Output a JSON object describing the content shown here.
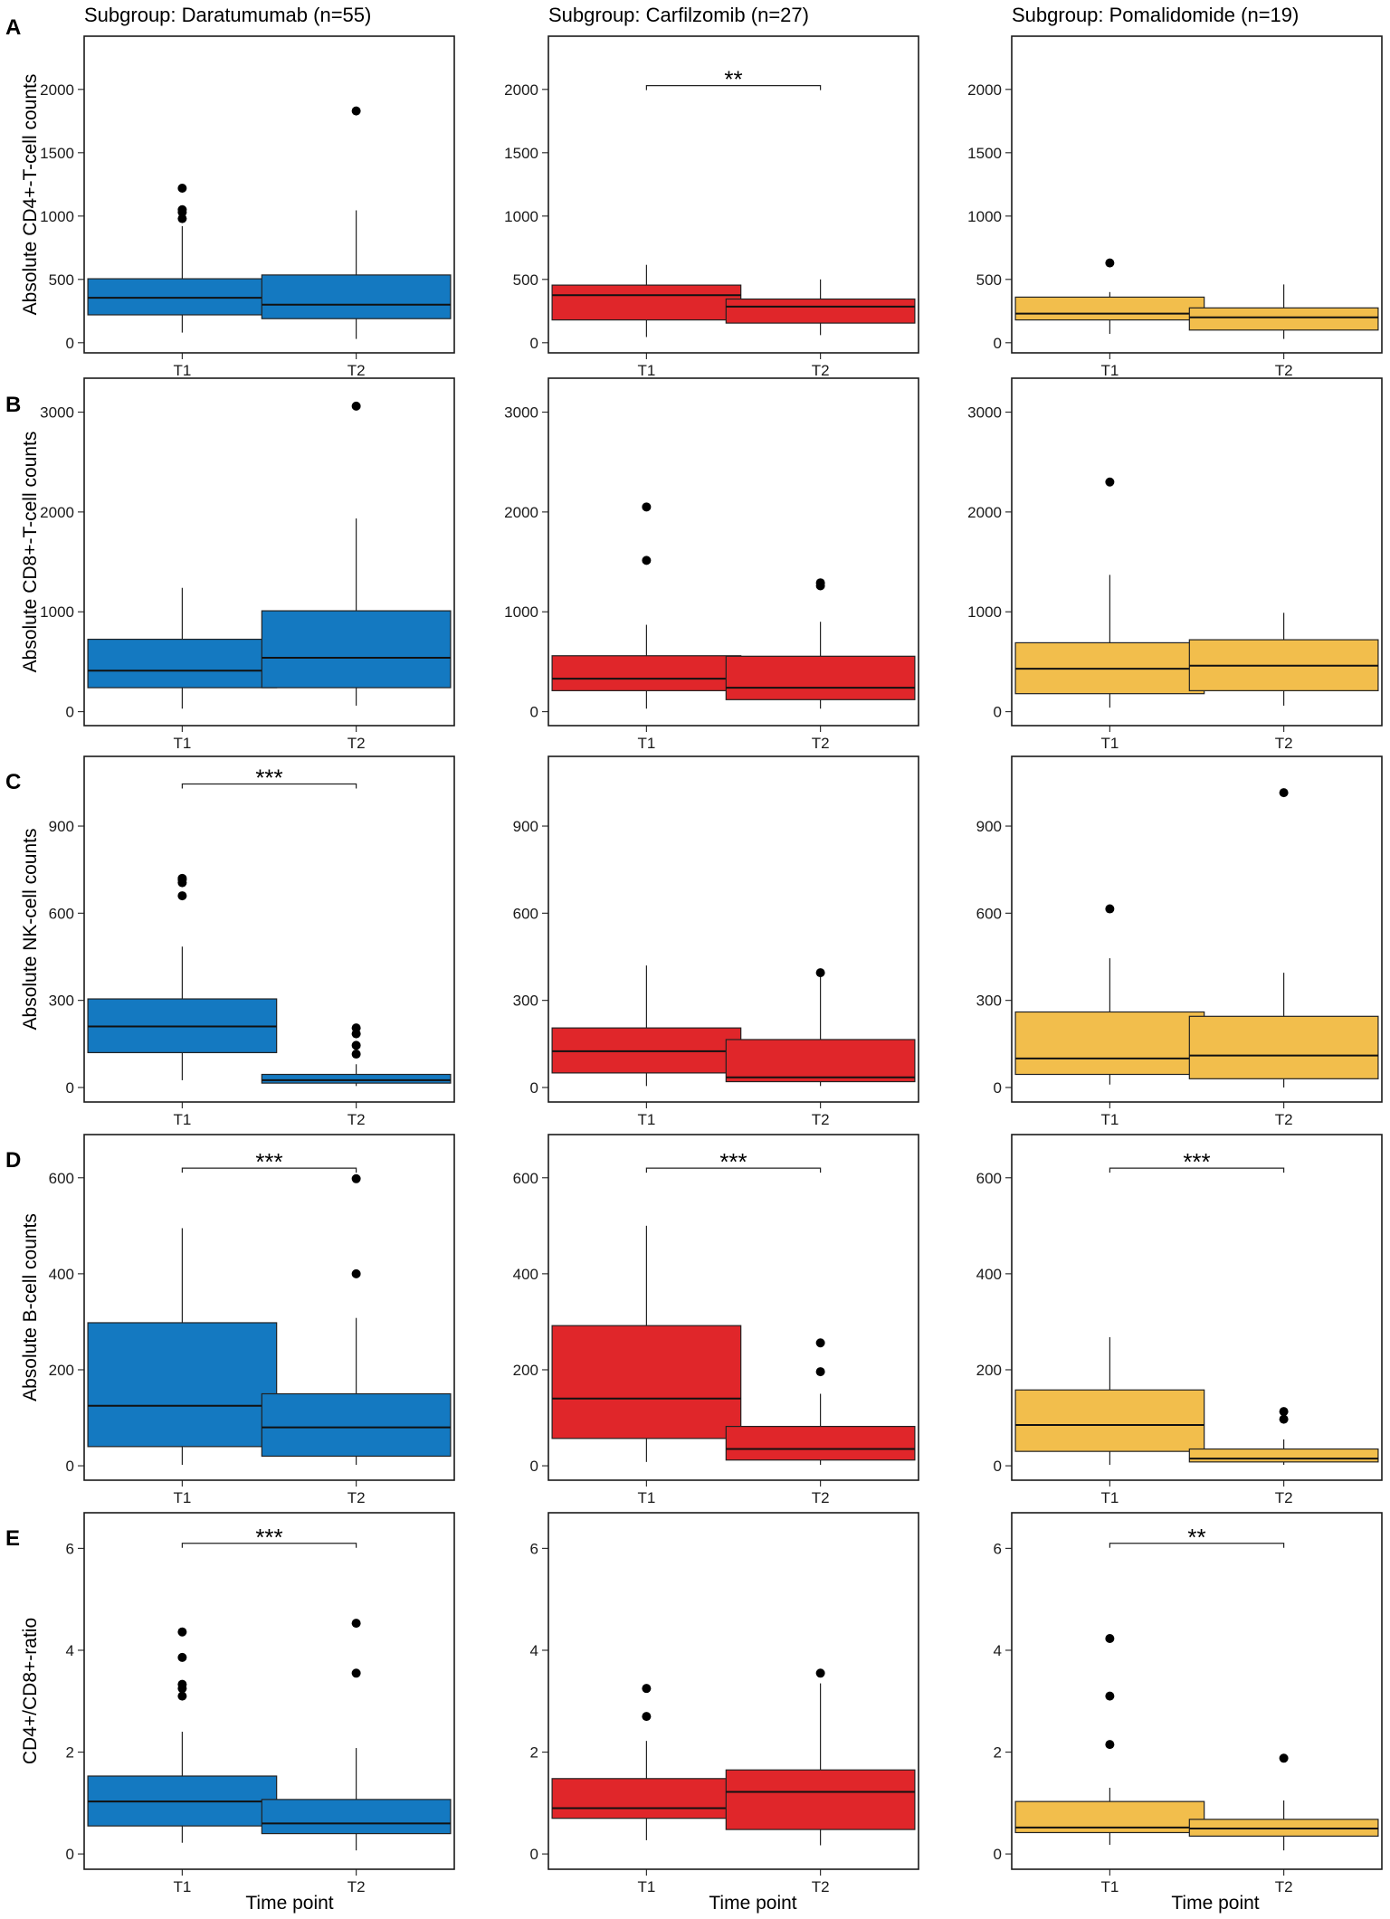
{
  "figure": {
    "columns": [
      {
        "title": "Subgroup: Daratumumab (n=55)",
        "color": "#1479C1"
      },
      {
        "title": "Subgroup: Carfilzomib (n=27)",
        "color": "#E0262A"
      },
      {
        "title": "Subgroup: Pomalidomide (n=19)",
        "color": "#F2BE4C"
      }
    ],
    "x_title": "Time point"
  },
  "chart_data": [
    {
      "type": "boxplot",
      "row": "A",
      "ylabel": "Absolute CD4+-T-cell counts",
      "ylim": [
        -80,
        2420
      ],
      "yticks": [
        0,
        500,
        1000,
        1500,
        2000
      ],
      "categories": [
        "T1",
        "T2"
      ],
      "panels": [
        {
          "subgroup": "Daratumumab",
          "boxes": [
            {
              "x": "T1",
              "whisker_low": 80,
              "q1": 220,
              "median": 355,
              "q3": 505,
              "whisker_high": 920,
              "outliers": [
                980,
                1030,
                1050,
                1220
              ]
            },
            {
              "x": "T2",
              "whisker_low": 30,
              "q1": 190,
              "median": 300,
              "q3": 535,
              "whisker_high": 1045,
              "outliers": [
                1830
              ]
            }
          ],
          "significance": null
        },
        {
          "subgroup": "Carfilzomib",
          "boxes": [
            {
              "x": "T1",
              "whisker_low": 45,
              "q1": 180,
              "median": 375,
              "q3": 455,
              "whisker_high": 615,
              "outliers": []
            },
            {
              "x": "T2",
              "whisker_low": 60,
              "q1": 155,
              "median": 285,
              "q3": 345,
              "whisker_high": 500,
              "outliers": []
            }
          ],
          "significance": {
            "label": "**",
            "y": 2030
          }
        },
        {
          "subgroup": "Pomalidomide",
          "boxes": [
            {
              "x": "T1",
              "whisker_low": 70,
              "q1": 180,
              "median": 230,
              "q3": 360,
              "whisker_high": 400,
              "outliers": [
                630
              ]
            },
            {
              "x": "T2",
              "whisker_low": 30,
              "q1": 100,
              "median": 200,
              "q3": 275,
              "whisker_high": 460,
              "outliers": []
            }
          ],
          "significance": null
        }
      ]
    },
    {
      "type": "boxplot",
      "row": "B",
      "ylabel": "Absolute CD8+-T-cell counts",
      "ylim": [
        -140,
        3340
      ],
      "yticks": [
        0,
        1000,
        2000,
        3000
      ],
      "categories": [
        "T1",
        "T2"
      ],
      "panels": [
        {
          "subgroup": "Daratumumab",
          "boxes": [
            {
              "x": "T1",
              "whisker_low": 30,
              "q1": 240,
              "median": 410,
              "q3": 725,
              "whisker_high": 1240,
              "outliers": []
            },
            {
              "x": "T2",
              "whisker_low": 60,
              "q1": 240,
              "median": 540,
              "q3": 1010,
              "whisker_high": 1935,
              "outliers": [
                3060
              ]
            }
          ],
          "significance": null
        },
        {
          "subgroup": "Carfilzomib",
          "boxes": [
            {
              "x": "T1",
              "whisker_low": 30,
              "q1": 210,
              "median": 330,
              "q3": 560,
              "whisker_high": 870,
              "outliers": [
                1515,
                2050
              ]
            },
            {
              "x": "T2",
              "whisker_low": 30,
              "q1": 120,
              "median": 240,
              "q3": 555,
              "whisker_high": 900,
              "outliers": [
                1260,
                1290
              ]
            }
          ],
          "significance": null
        },
        {
          "subgroup": "Pomalidomide",
          "boxes": [
            {
              "x": "T1",
              "whisker_low": 40,
              "q1": 180,
              "median": 430,
              "q3": 690,
              "whisker_high": 1370,
              "outliers": [
                2300
              ]
            },
            {
              "x": "T2",
              "whisker_low": 60,
              "q1": 210,
              "median": 460,
              "q3": 720,
              "whisker_high": 990,
              "outliers": []
            }
          ],
          "significance": null
        }
      ]
    },
    {
      "type": "boxplot",
      "row": "C",
      "ylabel": "Absolute NK-cell counts",
      "ylim": [
        -50,
        1140
      ],
      "yticks": [
        0,
        300,
        600,
        900
      ],
      "categories": [
        "T1",
        "T2"
      ],
      "panels": [
        {
          "subgroup": "Daratumumab",
          "boxes": [
            {
              "x": "T1",
              "whisker_low": 25,
              "q1": 120,
              "median": 210,
              "q3": 305,
              "whisker_high": 485,
              "outliers": [
                660,
                705,
                715,
                720
              ]
            },
            {
              "x": "T2",
              "whisker_low": 5,
              "q1": 15,
              "median": 25,
              "q3": 45,
              "whisker_high": 80,
              "outliers": [
                115,
                145,
                185,
                205
              ]
            }
          ],
          "significance": {
            "label": "***",
            "y": 1045
          }
        },
        {
          "subgroup": "Carfilzomib",
          "boxes": [
            {
              "x": "T1",
              "whisker_low": 5,
              "q1": 50,
              "median": 125,
              "q3": 205,
              "whisker_high": 420,
              "outliers": []
            },
            {
              "x": "T2",
              "whisker_low": 5,
              "q1": 20,
              "median": 35,
              "q3": 165,
              "whisker_high": 380,
              "outliers": [
                395
              ]
            }
          ],
          "significance": null
        },
        {
          "subgroup": "Pomalidomide",
          "boxes": [
            {
              "x": "T1",
              "whisker_low": 10,
              "q1": 45,
              "median": 100,
              "q3": 260,
              "whisker_high": 445,
              "outliers": [
                615
              ]
            },
            {
              "x": "T2",
              "whisker_low": 0,
              "q1": 30,
              "median": 110,
              "q3": 245,
              "whisker_high": 395,
              "outliers": [
                1015
              ]
            }
          ],
          "significance": null
        }
      ]
    },
    {
      "type": "boxplot",
      "row": "D",
      "ylabel": "Absolute B-cell counts",
      "ylim": [
        -30,
        690
      ],
      "yticks": [
        0,
        200,
        400,
        600
      ],
      "categories": [
        "T1",
        "T2"
      ],
      "panels": [
        {
          "subgroup": "Daratumumab",
          "boxes": [
            {
              "x": "T1",
              "whisker_low": 2,
              "q1": 40,
              "median": 125,
              "q3": 298,
              "whisker_high": 495,
              "outliers": []
            },
            {
              "x": "T2",
              "whisker_low": 2,
              "q1": 20,
              "median": 80,
              "q3": 150,
              "whisker_high": 308,
              "outliers": [
                400,
                598
              ]
            }
          ],
          "significance": {
            "label": "***",
            "y": 620
          }
        },
        {
          "subgroup": "Carfilzomib",
          "boxes": [
            {
              "x": "T1",
              "whisker_low": 8,
              "q1": 57,
              "median": 140,
              "q3": 292,
              "whisker_high": 500,
              "outliers": []
            },
            {
              "x": "T2",
              "whisker_low": 2,
              "q1": 12,
              "median": 35,
              "q3": 82,
              "whisker_high": 150,
              "outliers": [
                196,
                256
              ]
            }
          ],
          "significance": {
            "label": "***",
            "y": 620
          }
        },
        {
          "subgroup": "Pomalidomide",
          "boxes": [
            {
              "x": "T1",
              "whisker_low": 2,
              "q1": 30,
              "median": 85,
              "q3": 158,
              "whisker_high": 268,
              "outliers": []
            },
            {
              "x": "T2",
              "whisker_low": 2,
              "q1": 8,
              "median": 15,
              "q3": 35,
              "whisker_high": 55,
              "outliers": [
                97,
                113
              ]
            }
          ],
          "significance": {
            "label": "***",
            "y": 620
          }
        }
      ]
    },
    {
      "type": "boxplot",
      "row": "E",
      "ylabel": "CD4+/CD8+-ratio",
      "ylim": [
        -0.3,
        6.7
      ],
      "yticks": [
        0,
        2,
        4,
        6
      ],
      "categories": [
        "T1",
        "T2"
      ],
      "panels": [
        {
          "subgroup": "Daratumumab",
          "boxes": [
            {
              "x": "T1",
              "whisker_low": 0.22,
              "q1": 0.55,
              "median": 1.03,
              "q3": 1.53,
              "whisker_high": 2.4,
              "outliers": [
                3.1,
                3.25,
                3.33,
                3.86,
                4.36
              ]
            },
            {
              "x": "T2",
              "whisker_low": 0.07,
              "q1": 0.4,
              "median": 0.6,
              "q3": 1.07,
              "whisker_high": 2.08,
              "outliers": [
                3.55,
                4.53
              ]
            }
          ],
          "significance": {
            "label": "***",
            "y": 6.1
          }
        },
        {
          "subgroup": "Carfilzomib",
          "boxes": [
            {
              "x": "T1",
              "whisker_low": 0.27,
              "q1": 0.7,
              "median": 0.9,
              "q3": 1.48,
              "whisker_high": 2.22,
              "outliers": [
                2.7,
                3.25
              ]
            },
            {
              "x": "T2",
              "whisker_low": 0.17,
              "q1": 0.48,
              "median": 1.22,
              "q3": 1.65,
              "whisker_high": 3.35,
              "outliers": [
                3.55
              ]
            }
          ],
          "significance": null
        },
        {
          "subgroup": "Pomalidomide",
          "boxes": [
            {
              "x": "T1",
              "whisker_low": 0.18,
              "q1": 0.42,
              "median": 0.52,
              "q3": 1.03,
              "whisker_high": 1.3,
              "outliers": [
                2.15,
                3.1,
                4.23
              ]
            },
            {
              "x": "T2",
              "whisker_low": 0.07,
              "q1": 0.35,
              "median": 0.5,
              "q3": 0.68,
              "whisker_high": 1.05,
              "outliers": [
                1.88
              ]
            }
          ],
          "significance": {
            "label": "**",
            "y": 6.1
          }
        }
      ]
    }
  ]
}
